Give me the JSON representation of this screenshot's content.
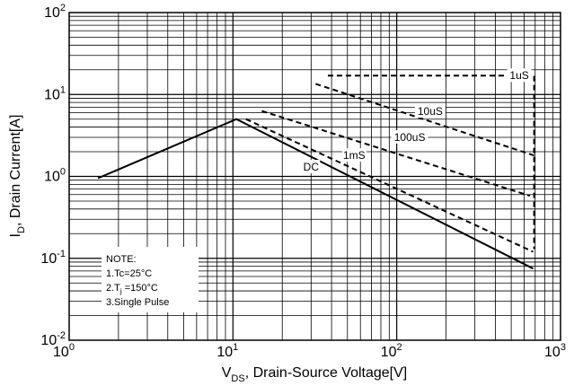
{
  "chart_data": {
    "type": "line",
    "x_scale": "log",
    "y_scale": "log",
    "xlim": [
      1,
      1000
    ],
    "ylim": [
      0.01,
      100
    ],
    "grid": true,
    "x_ticks": [
      {
        "base": "10",
        "exp": "0",
        "value": 1
      },
      {
        "base": "10",
        "exp": "1",
        "value": 10
      },
      {
        "base": "10",
        "exp": "2",
        "value": 100
      },
      {
        "base": "10",
        "exp": "3",
        "value": 1000
      }
    ],
    "y_ticks": [
      {
        "base": "10",
        "exp": "-2",
        "value": 0.01
      },
      {
        "base": "10",
        "exp": "-1",
        "value": 0.1
      },
      {
        "base": "10",
        "exp": "0",
        "value": 1
      },
      {
        "base": "10",
        "exp": "1",
        "value": 10
      },
      {
        "base": "10",
        "exp": "2",
        "value": 100
      }
    ],
    "xlabel": {
      "main": "V",
      "sub": "DS",
      "rest": ", Drain-Source Voltage[V]"
    },
    "ylabel": {
      "main": "I",
      "sub": "D",
      "rest": ", Drain Current[A]"
    },
    "series": [
      {
        "name": "1uS",
        "dash": "dashed",
        "points": [
          [
            38,
            17
          ],
          [
            690,
            17
          ],
          [
            690,
            0.13
          ]
        ],
        "label_at": [
          560,
          17
        ]
      },
      {
        "name": "10uS",
        "dash": "dashed",
        "points": [
          [
            32,
            13.5
          ],
          [
            690,
            1.8
          ]
        ],
        "label_at": [
          160,
          6.2
        ]
      },
      {
        "name": "100uS",
        "dash": "dashed",
        "points": [
          [
            15,
            6.3
          ],
          [
            650,
            0.58
          ]
        ],
        "label_at": [
          120,
          3.0
        ]
      },
      {
        "name": "1mS",
        "dash": "dashed",
        "points": [
          [
            12,
            5.0
          ],
          [
            680,
            0.12
          ]
        ],
        "label_at": [
          55,
          1.8
        ]
      },
      {
        "name": "DC",
        "dash": "solid",
        "points": [
          [
            1.5,
            0.95
          ],
          [
            10.5,
            5.0
          ],
          [
            680,
            0.075
          ]
        ],
        "label_at": [
          30,
          1.3
        ]
      }
    ],
    "note": {
      "lines": [
        {
          "text": "NOTE:"
        },
        {
          "text": "1.Tc=25°C"
        },
        {
          "pre": "2.T",
          "sub": "j",
          "post": " =150°C"
        },
        {
          "text": "3.Single Pulse"
        }
      ]
    }
  }
}
